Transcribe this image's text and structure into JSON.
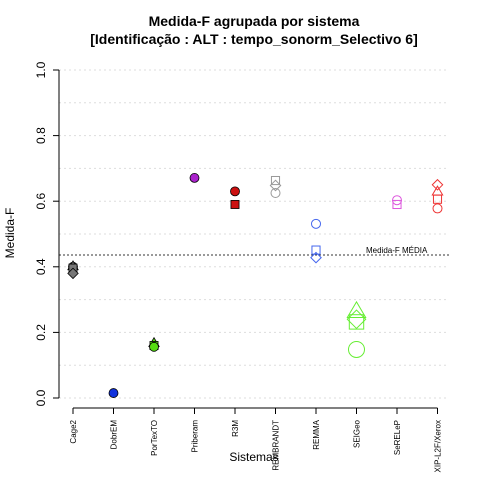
{
  "chart_data": {
    "type": "scatter",
    "title": "Medida-F agrupada por sistema",
    "subtitle": "[Identificação : ALT : tempo_sonorm_Selectivo 6]",
    "xlabel": "Sistemas",
    "ylabel": "Medida-F",
    "ylim": [
      0,
      1
    ],
    "yticks": [
      "0.0",
      "0.2",
      "0.4",
      "0.6",
      "0.8",
      "1.0"
    ],
    "grid": true,
    "categories": [
      "Cage2",
      "DobrEM",
      "PorTexTO",
      "Priberam",
      "R3M",
      "REMBRANDT",
      "REMMA",
      "SEIGeo",
      "SeRELeP",
      "XIP-L2F/Xerox"
    ],
    "colors": [
      "#777777",
      "#1133dd",
      "#55dd11",
      "#aa22cc",
      "#cc1111",
      "#999999",
      "#4466ee",
      "#66ee33",
      "#dd55dd",
      "#ee3333"
    ],
    "points": [
      {
        "system": "Cage2",
        "value": 0.4,
        "marker": "circle",
        "filled": true
      },
      {
        "system": "Cage2",
        "value": 0.402,
        "marker": "triangle",
        "filled": true
      },
      {
        "system": "Cage2",
        "value": 0.396,
        "marker": "square",
        "filled": true
      },
      {
        "system": "Cage2",
        "value": 0.38,
        "marker": "diamond",
        "filled": true
      },
      {
        "system": "DobrEM",
        "value": 0.015,
        "marker": "circle",
        "filled": true
      },
      {
        "system": "PorTexTO",
        "value": 0.168,
        "marker": "triangle",
        "filled": true
      },
      {
        "system": "PorTexTO",
        "value": 0.16,
        "marker": "square",
        "filled": true
      },
      {
        "system": "PorTexTO",
        "value": 0.156,
        "marker": "circle",
        "filled": true
      },
      {
        "system": "Priberam",
        "value": 0.671,
        "marker": "circle",
        "filled": true
      },
      {
        "system": "R3M",
        "value": 0.63,
        "marker": "circle",
        "filled": true
      },
      {
        "system": "R3M",
        "value": 0.59,
        "marker": "square",
        "filled": true
      },
      {
        "system": "REMBRANDT",
        "value": 0.663,
        "marker": "square",
        "filled": false
      },
      {
        "system": "REMBRANDT",
        "value": 0.648,
        "marker": "diamond",
        "filled": false
      },
      {
        "system": "REMBRANDT",
        "value": 0.625,
        "marker": "circle",
        "filled": false
      },
      {
        "system": "REMMA",
        "value": 0.531,
        "marker": "circle",
        "filled": false
      },
      {
        "system": "REMMA",
        "value": 0.451,
        "marker": "square",
        "filled": false
      },
      {
        "system": "REMMA",
        "value": 0.428,
        "marker": "diamond",
        "filled": false
      },
      {
        "system": "SEIGeo",
        "value": 0.265,
        "marker": "triangle",
        "filled": false,
        "size": "large"
      },
      {
        "system": "SEIGeo",
        "value": 0.24,
        "marker": "diamond",
        "filled": false,
        "size": "large"
      },
      {
        "system": "SEIGeo",
        "value": 0.232,
        "marker": "square",
        "filled": false,
        "size": "large"
      },
      {
        "system": "SEIGeo",
        "value": 0.148,
        "marker": "circle",
        "filled": false,
        "size": "large"
      },
      {
        "system": "SeRELeP",
        "value": 0.603,
        "marker": "circle",
        "filled": false
      },
      {
        "system": "SeRELeP",
        "value": 0.59,
        "marker": "square",
        "filled": false
      },
      {
        "system": "XIP-L2F/Xerox",
        "value": 0.65,
        "marker": "diamond",
        "filled": false
      },
      {
        "system": "XIP-L2F/Xerox",
        "value": 0.63,
        "marker": "triangle",
        "filled": false
      },
      {
        "system": "XIP-L2F/Xerox",
        "value": 0.606,
        "marker": "square",
        "filled": false
      },
      {
        "system": "XIP-L2F/Xerox",
        "value": 0.578,
        "marker": "circle",
        "filled": false
      }
    ],
    "reference_line": {
      "label": "Medida-F MÉDIA",
      "value": 0.436
    }
  }
}
